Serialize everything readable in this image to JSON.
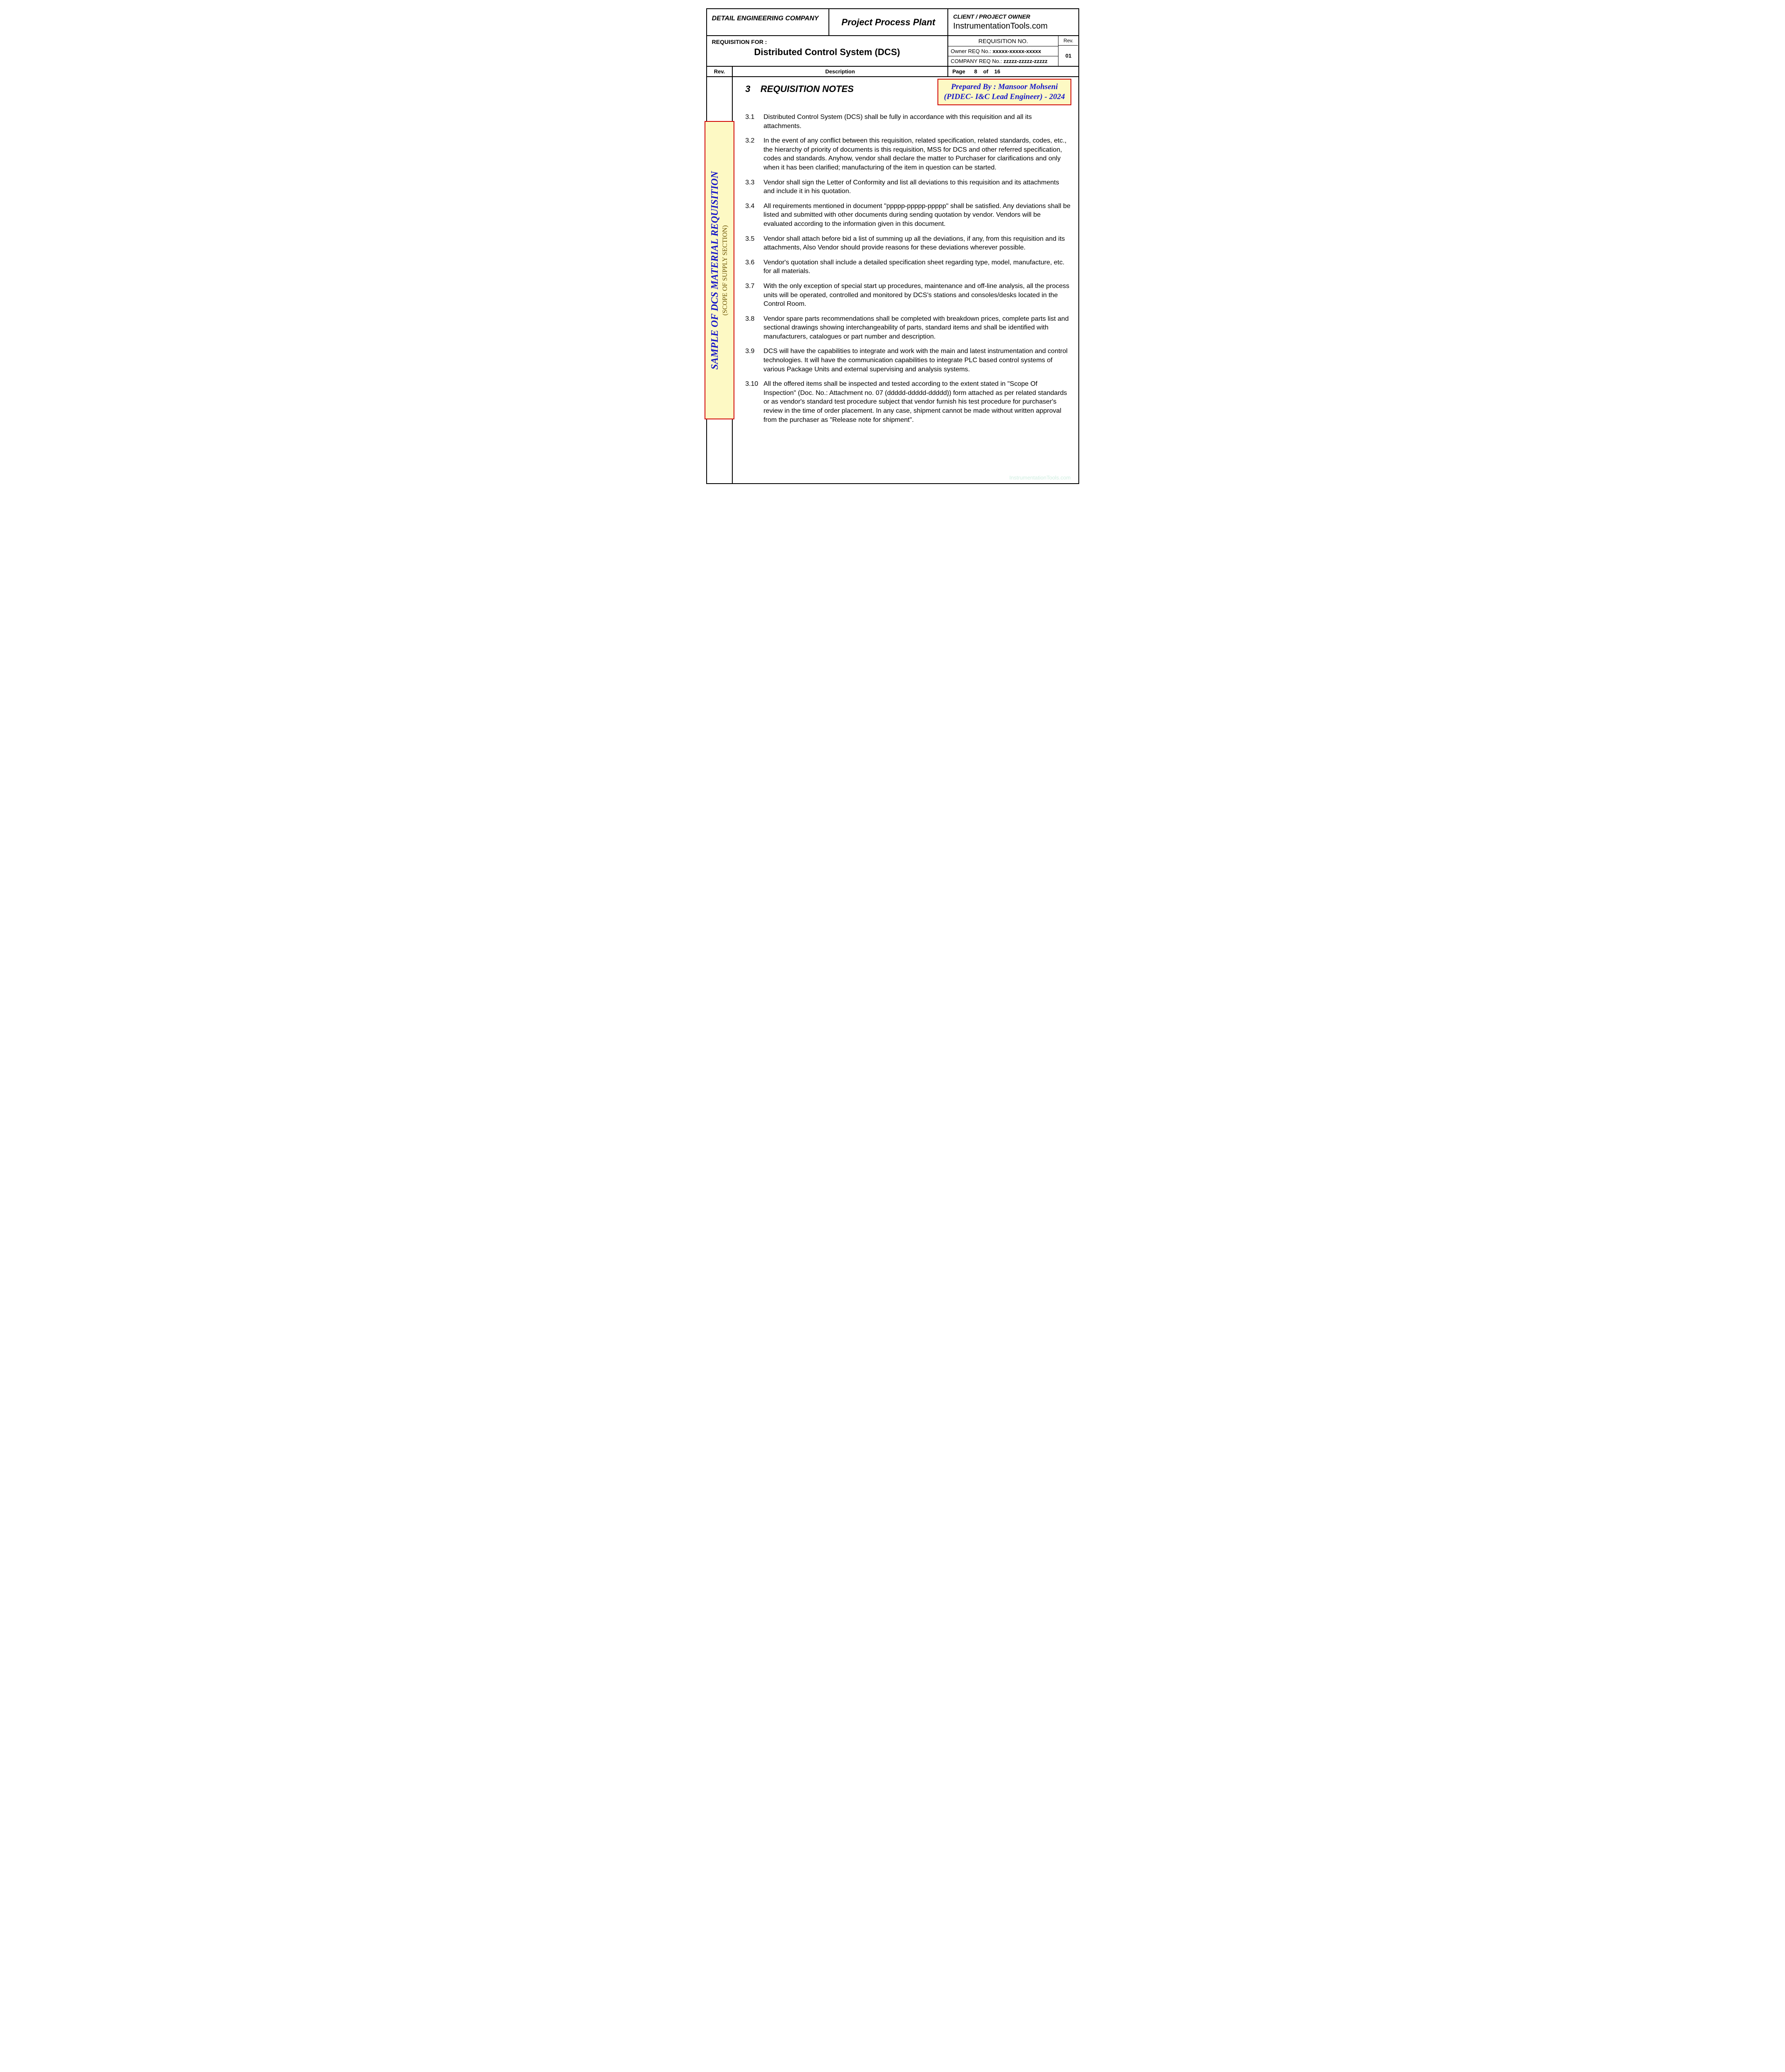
{
  "header": {
    "company_label": "DETAIL ENGINEERING COMPANY",
    "project_title": "Project Process Plant",
    "client_label": "CLIENT / PROJECT OWNER",
    "client_name": "InstrumentationTools.com",
    "req_for_label": "REQUISITION FOR :",
    "req_for_value": "Distributed Control System (DCS)",
    "req_no_label": "REQUISITION NO.",
    "owner_req_label": "Owner REQ No.: ",
    "owner_req_value": "xxxxx-xxxxx-xxxxx",
    "company_req_label": "COMPANY REQ No.: ",
    "company_req_value": "zzzzz-zzzzz-zzzzz",
    "rev_label_short": "Rev.",
    "rev_value": "01",
    "desc_label": "Description",
    "page_label": "Page",
    "page_of_label": "of",
    "page_current": "8",
    "page_total": "16"
  },
  "prepared": {
    "line1": "Prepared By : Mansoor Mohseni",
    "line2": "(PIDEC- I&C Lead Engineer) - 2024"
  },
  "sample_stamp": {
    "main": "SAMPLE OF DCS MATERIAL REQUISITION",
    "sub": "(SCOPE OF SUPPLY SECTION)"
  },
  "section": {
    "number": "3",
    "title": "REQUISITION NOTES"
  },
  "notes": [
    {
      "num": "3.1",
      "text": "Distributed Control System (DCS) shall be fully in accordance with this requisition and all its attachments."
    },
    {
      "num": "3.2",
      "text": "In the event of any conflict between this requisition, related specification, related standards, codes, etc., the hierarchy of priority of documents is this requisition, MSS for DCS and other referred specification, codes and standards. Anyhow, vendor shall declare the matter to Purchaser for clarifications and only when it has been clarified; manufacturing of the item in question can be started."
    },
    {
      "num": "3.3",
      "text": "Vendor shall sign the Letter of Conformity and list all deviations to this requisition and its attachments and include it in his quotation."
    },
    {
      "num": "3.4",
      "text": "All requirements mentioned in document \"ppppp-ppppp-ppppp\" shall be satisfied. Any deviations shall be listed and submitted with other documents during sending quotation by vendor. Vendors will be evaluated according to the information given in this document."
    },
    {
      "num": "3.5",
      "text": "Vendor shall attach before bid a list of summing up all the deviations, if any, from this requisition and its attachments, Also Vendor should provide reasons for these deviations wherever possible."
    },
    {
      "num": "3.6",
      "text": "Vendor's quotation shall include a detailed specification sheet regarding type, model, manufacture, etc. for all materials."
    },
    {
      "num": "3.7",
      "text": "With the only exception of special start up procedures, maintenance and off-line analysis, all the process units will be operated, controlled and monitored by DCS's stations and consoles/desks located in the Control Room."
    },
    {
      "num": "3.8",
      "text": "Vendor spare parts recommendations shall be completed with breakdown prices, complete parts list and sectional drawings showing interchangeability of parts, standard items and shall be identified with manufacturers, catalogues or part number and description."
    },
    {
      "num": "3.9",
      "text": "DCS will have the capabilities to integrate and work with the main and latest instrumentation and control technologies. It will have the communication capabilities to integrate PLC based control systems of various Package Units and external supervising and analysis systems."
    },
    {
      "num": "3.10",
      "text": "All the offered items shall be inspected and tested according to the extent stated in \"Scope Of Inspection\" (Doc. No.: Attachment no. 07 (ddddd-ddddd-ddddd)) form attached as per related standards or as vendor's standard test procedure subject that vendor furnish his test procedure for purchaser's review in the time of order placement. In any case, shipment cannot be made without written approval from the purchaser as \"Release note for shipment\"."
    }
  ],
  "watermark": "InstrumentationTools.com",
  "colors": {
    "stamp_bg": "#fdf9c4",
    "stamp_border": "#d00000",
    "stamp_text": "#1818c8",
    "sample_sub": "#6a5200",
    "border": "#000000",
    "watermark": "#cfeee0"
  }
}
